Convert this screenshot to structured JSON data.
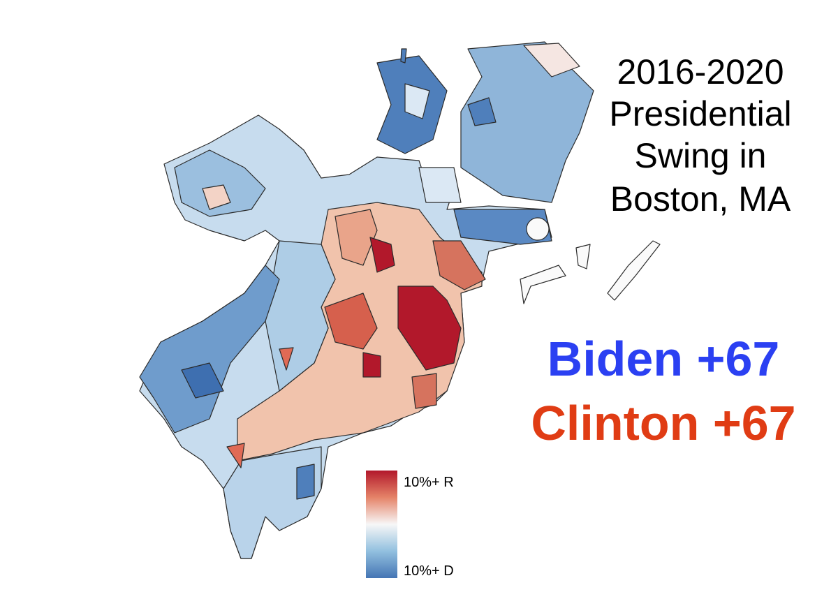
{
  "title": [
    "2016-2020",
    "Presidential",
    "Swing in",
    "Boston, MA"
  ],
  "results": [
    {
      "label": "Biden +67"
    },
    {
      "label": "Clinton +67"
    }
  ],
  "legend": {
    "high_label": "10%+ R",
    "low_label": "10%+ D"
  }
}
